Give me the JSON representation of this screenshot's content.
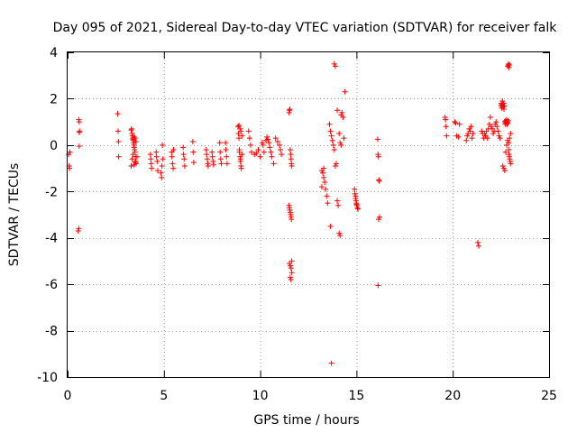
{
  "chart_data": {
    "type": "scatter",
    "title": "Day 095 of 2021, Sidereal Day-to-day VTEC variation (SDTVAR) for receiver falk",
    "xlabel": "GPS time / hours",
    "ylabel": "SDTVAR / TECUs",
    "xlim": [
      0,
      25
    ],
    "ylim": [
      -10,
      4
    ],
    "xticks": [
      0,
      5,
      10,
      15,
      20,
      25
    ],
    "yticks": [
      -10,
      -8,
      -6,
      -4,
      -2,
      0,
      2,
      4
    ],
    "xtick_labels": [
      "0",
      "5",
      "10",
      "15",
      "20",
      "25"
    ],
    "ytick_labels": [
      "-10",
      "-8",
      "-6",
      "-4",
      "-2",
      "0",
      "2",
      "4"
    ],
    "grid": true,
    "marker": "+",
    "color": "#ff0000",
    "series": [
      {
        "name": "SDTVAR",
        "x": [
          0.05,
          0.08,
          0.1,
          0.12,
          0.55,
          0.58,
          0.6,
          0.62,
          0.6,
          0.58,
          0.6,
          2.6,
          2.62,
          2.64,
          2.65,
          3.3,
          3.32,
          3.34,
          3.36,
          3.38,
          3.4,
          3.42,
          3.44,
          3.46,
          3.48,
          3.5,
          3.52,
          3.54,
          3.56,
          3.3,
          3.35,
          3.4,
          3.45,
          3.5,
          3.55,
          3.6,
          3.4,
          3.45,
          3.5,
          4.3,
          4.32,
          4.34,
          4.36,
          4.6,
          4.62,
          4.65,
          4.68,
          4.85,
          4.88,
          4.9,
          4.92,
          4.95,
          5.4,
          5.42,
          5.45,
          5.48,
          5.5,
          6.0,
          6.02,
          6.05,
          6.08,
          6.5,
          6.52,
          6.55,
          7.2,
          7.22,
          7.25,
          7.28,
          7.3,
          7.5,
          7.52,
          7.55,
          7.58,
          7.9,
          7.92,
          7.95,
          7.98,
          8.2,
          8.22,
          8.25,
          8.28,
          8.85,
          8.87,
          8.9,
          8.92,
          8.95,
          8.97,
          9.0,
          9.02,
          9.05,
          8.9,
          8.95,
          9.0,
          9.05,
          8.92,
          8.98,
          9.4,
          9.45,
          9.5,
          9.55,
          9.7,
          9.8,
          9.9,
          10.0,
          10.1,
          10.15,
          10.2,
          10.3,
          10.35,
          10.4,
          10.45,
          10.5,
          10.55,
          10.6,
          10.7,
          10.8,
          10.9,
          11.0,
          11.05,
          11.1,
          11.5,
          11.52,
          11.54,
          11.56,
          11.58,
          11.6,
          11.62,
          11.64,
          11.5,
          11.52,
          11.54,
          11.56,
          11.58,
          11.6,
          11.62,
          11.64,
          11.52,
          11.56,
          11.6,
          11.64,
          11.56,
          11.6,
          13.2,
          13.25,
          13.3,
          13.35,
          13.4,
          13.45,
          13.5,
          13.2,
          13.3,
          13.6,
          13.65,
          13.7,
          13.75,
          13.8,
          13.85,
          13.9,
          13.95,
          14.0,
          14.05,
          14.1,
          14.15,
          14.2,
          14.25,
          14.3,
          14.35,
          14.4,
          13.85,
          13.9,
          14.0,
          14.1,
          14.15,
          14.2,
          13.65,
          13.7,
          14.9,
          14.92,
          14.95,
          14.98,
          15.0,
          15.02,
          15.05,
          15.08,
          14.95,
          15.0,
          16.1,
          16.12,
          16.14,
          16.16,
          16.18,
          16.2,
          16.15,
          16.12,
          19.6,
          19.62,
          19.65,
          19.68,
          20.1,
          20.15,
          20.2,
          20.3,
          20.35,
          20.7,
          20.75,
          20.8,
          20.85,
          20.9,
          20.95,
          21.0,
          21.05,
          21.3,
          21.35,
          21.5,
          21.55,
          21.6,
          21.65,
          21.7,
          21.75,
          21.8,
          21.85,
          21.9,
          21.95,
          22.0,
          22.05,
          22.1,
          22.15,
          22.2,
          22.25,
          22.3,
          22.35,
          22.4,
          22.45,
          22.5,
          22.52,
          22.54,
          22.56,
          22.58,
          22.6,
          22.62,
          22.64,
          22.66,
          22.68,
          22.7,
          22.72,
          22.74,
          22.76,
          22.78,
          22.8,
          22.82,
          22.84,
          22.86,
          22.88,
          22.9,
          22.92,
          22.94,
          22.96,
          22.98,
          23.0,
          22.6,
          22.65,
          22.7,
          22.75,
          22.8,
          22.85,
          22.9,
          22.95,
          23.0,
          22.85,
          22.88,
          22.9,
          22.92,
          22.95
        ],
        "y": [
          -0.4,
          -0.9,
          -1.0,
          -0.3,
          -3.7,
          -3.6,
          1.0,
          0.6,
          -0.05,
          1.1,
          0.55,
          1.35,
          0.6,
          0.15,
          -0.5,
          0.65,
          0.7,
          0.5,
          0.4,
          0.3,
          0.2,
          0.1,
          0.0,
          -0.1,
          -0.2,
          -0.3,
          -0.5,
          -0.7,
          -0.8,
          -0.9,
          -0.6,
          -0.4,
          -0.85,
          0.3,
          0.15,
          -0.5,
          0.25,
          0.35,
          -0.75,
          -0.4,
          -0.6,
          -0.8,
          -1.0,
          -0.3,
          -0.5,
          -0.7,
          -1.1,
          -1.2,
          -1.4,
          -0.9,
          0.0,
          -0.6,
          -0.3,
          -0.5,
          -0.8,
          -1.0,
          -0.2,
          -0.1,
          -0.4,
          -0.6,
          -0.9,
          0.15,
          -0.3,
          -0.75,
          -0.2,
          -0.4,
          -0.6,
          -0.8,
          -0.9,
          -0.3,
          -0.5,
          -0.7,
          -0.85,
          0.1,
          -0.3,
          -0.6,
          -0.8,
          0.1,
          -0.2,
          -0.5,
          -0.8,
          0.8,
          0.5,
          0.3,
          -0.2,
          -0.5,
          -0.7,
          -0.9,
          -1.0,
          -0.4,
          0.85,
          0.7,
          0.6,
          0.4,
          -0.3,
          -0.6,
          0.6,
          0.3,
          0.0,
          -0.3,
          -0.4,
          -0.35,
          -0.2,
          -0.5,
          0.1,
          0.0,
          -0.3,
          0.2,
          0.35,
          0.25,
          0.1,
          -0.1,
          -0.3,
          -0.5,
          -0.8,
          0.3,
          0.15,
          0.0,
          -0.2,
          -0.4,
          1.4,
          1.5,
          1.55,
          -0.2,
          -0.4,
          -0.6,
          -0.8,
          -0.9,
          -2.6,
          -2.7,
          -2.8,
          -2.9,
          -3.0,
          -3.1,
          -3.2,
          -5.0,
          -5.1,
          -5.2,
          -5.3,
          -5.5,
          -5.7,
          -5.8,
          -1.1,
          -1.2,
          -1.4,
          -1.6,
          -1.9,
          -2.2,
          -2.5,
          -1.8,
          -1.0,
          0.9,
          0.6,
          0.4,
          0.2,
          0.0,
          -0.2,
          -0.9,
          -0.8,
          -2.4,
          -2.6,
          -3.8,
          -3.9,
          1.3,
          1.4,
          1.2,
          0.3,
          2.3,
          3.5,
          3.4,
          1.5,
          0.5,
          0.1,
          0.0,
          -3.5,
          -9.4,
          -1.9,
          -2.1,
          -2.3,
          -2.4,
          -2.5,
          -2.6,
          -2.7,
          -2.75,
          -2.2,
          -2.55,
          0.25,
          -0.4,
          -0.5,
          -1.5,
          -1.55,
          -3.1,
          -3.2,
          -6.05,
          1.2,
          1.1,
          0.8,
          0.4,
          1.0,
          0.95,
          0.4,
          0.35,
          0.9,
          0.2,
          0.4,
          0.5,
          0.7,
          0.6,
          0.8,
          0.3,
          0.5,
          -4.2,
          -4.35,
          0.6,
          0.5,
          0.3,
          0.5,
          0.4,
          0.6,
          0.3,
          0.7,
          0.9,
          1.2,
          0.8,
          0.7,
          0.5,
          0.6,
          0.9,
          1.0,
          0.8,
          0.6,
          0.4,
          0.3,
          1.7,
          1.8,
          1.6,
          1.75,
          1.9,
          1.7,
          1.65,
          1.8,
          1.55,
          1.7,
          1.0,
          0.9,
          1.05,
          0.95,
          1.0,
          1.1,
          0.9,
          1.0,
          0.95,
          1.05,
          -0.2,
          -0.4,
          -0.5,
          -0.6,
          -0.7,
          -0.8,
          -0.9,
          -1.0,
          -1.1,
          -0.3,
          0.0,
          0.2,
          0.1,
          0.3,
          0.5,
          3.4,
          3.45,
          3.5,
          3.35,
          3.45
        ]
      }
    ]
  }
}
